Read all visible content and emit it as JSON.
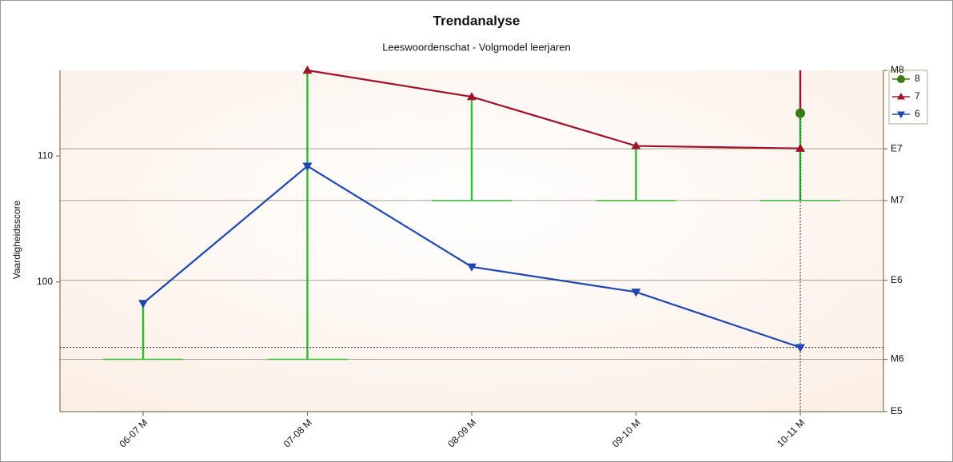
{
  "chart_data": {
    "type": "line",
    "title": "Trendanalyse",
    "subtitle": "Leeswoordenschat - Volgmodel leerjaren",
    "y_label": "Vaardigheidsscore",
    "categories": [
      "06-07 M",
      "07-08 M",
      "08-09 M",
      "09-10 M",
      "10-11 M"
    ],
    "series": [
      {
        "name": "8",
        "color": "#3a7a12",
        "marker": "circle",
        "values": [
          null,
          null,
          null,
          null,
          113.4
        ]
      },
      {
        "name": "7",
        "color": "#a0142a",
        "marker": "triangle-up",
        "values": [
          null,
          116.8,
          114.7,
          110.8,
          110.6
        ]
      },
      {
        "name": "6",
        "color": "#1f45b0",
        "marker": "triangle-down",
        "values": [
          98.3,
          109.2,
          101.2,
          99.2,
          94.8
        ]
      }
    ],
    "norms": {
      "color": "#33bb33",
      "values": [
        93.86,
        93.86,
        106.46,
        106.46,
        106.46
      ]
    },
    "ylim": [
      89.7,
      116.8
    ],
    "yticks": [
      100,
      110
    ],
    "y2lim": [
      89.7,
      116.8
    ],
    "y2ticks": [
      {
        "value": 89.7,
        "label": "E5"
      },
      {
        "value": 93.86,
        "label": "M6"
      },
      {
        "value": 100.13,
        "label": "E6"
      },
      {
        "value": 106.46,
        "label": "M7"
      },
      {
        "value": 110.57,
        "label": "E7"
      },
      {
        "value": 116.8,
        "label": "M8"
      }
    ],
    "grid": true,
    "legend": "right"
  }
}
